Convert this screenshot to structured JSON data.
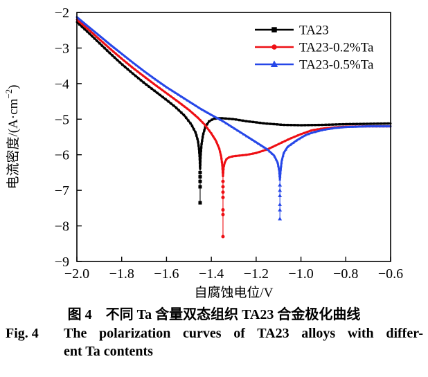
{
  "chart_data": {
    "type": "line",
    "title": "",
    "xlabel": "自腐蚀电位/V",
    "ylabel": {
      "pre": "电流密度/(A·cm",
      "sup": "−2",
      "post": ")"
    },
    "xlim": [
      -2.0,
      -0.6
    ],
    "ylim": [
      -9,
      -2
    ],
    "grid": false,
    "legend_position": "inside-top-right",
    "x_ticks": [
      -2.0,
      -1.8,
      -1.6,
      -1.4,
      -1.2,
      -1.0,
      -0.8,
      -0.6
    ],
    "x_tick_labels": [
      "−2.0",
      "−1.8",
      "−1.6",
      "−1.4",
      "−1.2",
      "−1.0",
      "−0.8",
      "−0.6"
    ],
    "y_ticks": [
      -2,
      -3,
      -4,
      -5,
      -6,
      -7,
      -8,
      -9
    ],
    "y_tick_labels": [
      "−2",
      "−3",
      "−4",
      "−5",
      "−6",
      "−7",
      "−8",
      "−9"
    ],
    "series": [
      {
        "name": "TA23",
        "color": "#000000",
        "marker": "square",
        "corrosion_potential_V": -1.45,
        "points": [
          [
            -2.0,
            -2.27
          ],
          [
            -1.95,
            -2.56
          ],
          [
            -1.9,
            -2.86
          ],
          [
            -1.85,
            -3.16
          ],
          [
            -1.8,
            -3.45
          ],
          [
            -1.75,
            -3.72
          ],
          [
            -1.7,
            -3.98
          ],
          [
            -1.65,
            -4.22
          ],
          [
            -1.6,
            -4.46
          ],
          [
            -1.56,
            -4.66
          ],
          [
            -1.52,
            -4.9
          ],
          [
            -1.49,
            -5.14
          ],
          [
            -1.47,
            -5.38
          ],
          [
            -1.46,
            -5.6
          ],
          [
            -1.455,
            -5.82
          ],
          [
            -1.452,
            -6.08
          ],
          [
            -1.45,
            -6.4
          ],
          [
            -1.448,
            -6.05
          ],
          [
            -1.444,
            -5.72
          ],
          [
            -1.437,
            -5.44
          ],
          [
            -1.427,
            -5.22
          ],
          [
            -1.41,
            -5.06
          ],
          [
            -1.39,
            -4.99
          ],
          [
            -1.36,
            -4.97
          ],
          [
            -1.3,
            -5.0
          ],
          [
            -1.24,
            -5.06
          ],
          [
            -1.16,
            -5.12
          ],
          [
            -1.08,
            -5.16
          ],
          [
            -1.0,
            -5.17
          ],
          [
            -0.9,
            -5.16
          ],
          [
            -0.8,
            -5.14
          ],
          [
            -0.7,
            -5.13
          ],
          [
            -0.6,
            -5.12
          ]
        ],
        "spike": {
          "x": -1.45,
          "top": -6.4,
          "bottom": -7.35,
          "markers": [
            -6.5,
            -6.62,
            -6.75,
            -6.9,
            -7.35
          ]
        }
      },
      {
        "name": "TA23-0.2%Ta",
        "color": "#ee0f14",
        "marker": "circle",
        "corrosion_potential_V": -1.35,
        "points": [
          [
            -2.0,
            -2.2
          ],
          [
            -1.95,
            -2.47
          ],
          [
            -1.9,
            -2.75
          ],
          [
            -1.85,
            -3.03
          ],
          [
            -1.8,
            -3.3
          ],
          [
            -1.75,
            -3.56
          ],
          [
            -1.7,
            -3.8
          ],
          [
            -1.65,
            -4.04
          ],
          [
            -1.6,
            -4.27
          ],
          [
            -1.55,
            -4.5
          ],
          [
            -1.5,
            -4.74
          ],
          [
            -1.46,
            -4.96
          ],
          [
            -1.43,
            -5.15
          ],
          [
            -1.4,
            -5.4
          ],
          [
            -1.38,
            -5.6
          ],
          [
            -1.365,
            -5.82
          ],
          [
            -1.356,
            -6.05
          ],
          [
            -1.351,
            -6.3
          ],
          [
            -1.348,
            -6.6
          ],
          [
            -1.345,
            -6.35
          ],
          [
            -1.34,
            -6.22
          ],
          [
            -1.332,
            -6.12
          ],
          [
            -1.32,
            -6.07
          ],
          [
            -1.3,
            -6.04
          ],
          [
            -1.27,
            -6.02
          ],
          [
            -1.24,
            -6.0
          ],
          [
            -1.2,
            -5.95
          ],
          [
            -1.15,
            -5.85
          ],
          [
            -1.1,
            -5.7
          ],
          [
            -1.05,
            -5.55
          ],
          [
            -1.0,
            -5.42
          ],
          [
            -0.95,
            -5.31
          ],
          [
            -0.9,
            -5.26
          ],
          [
            -0.85,
            -5.23
          ],
          [
            -0.8,
            -5.21
          ],
          [
            -0.7,
            -5.2
          ],
          [
            -0.6,
            -5.2
          ]
        ],
        "spike": {
          "x": -1.348,
          "top": -6.6,
          "bottom": -8.3,
          "markers": [
            -6.75,
            -6.9,
            -7.05,
            -7.2,
            -7.55,
            -7.68,
            -8.3
          ]
        }
      },
      {
        "name": "TA23-0.5%Ta",
        "color": "#2647e8",
        "marker": "triangle",
        "corrosion_potential_V": -1.09,
        "points": [
          [
            -2.0,
            -2.13
          ],
          [
            -1.95,
            -2.39
          ],
          [
            -1.9,
            -2.65
          ],
          [
            -1.85,
            -2.91
          ],
          [
            -1.8,
            -3.16
          ],
          [
            -1.75,
            -3.41
          ],
          [
            -1.7,
            -3.65
          ],
          [
            -1.65,
            -3.88
          ],
          [
            -1.6,
            -4.1
          ],
          [
            -1.55,
            -4.3
          ],
          [
            -1.5,
            -4.5
          ],
          [
            -1.45,
            -4.7
          ],
          [
            -1.4,
            -4.88
          ],
          [
            -1.35,
            -5.05
          ],
          [
            -1.3,
            -5.25
          ],
          [
            -1.25,
            -5.45
          ],
          [
            -1.2,
            -5.65
          ],
          [
            -1.15,
            -5.85
          ],
          [
            -1.12,
            -6.02
          ],
          [
            -1.104,
            -6.22
          ],
          [
            -1.097,
            -6.45
          ],
          [
            -1.094,
            -6.7
          ],
          [
            -1.091,
            -6.45
          ],
          [
            -1.086,
            -6.18
          ],
          [
            -1.077,
            -5.95
          ],
          [
            -1.06,
            -5.78
          ],
          [
            -1.02,
            -5.6
          ],
          [
            -0.98,
            -5.45
          ],
          [
            -0.95,
            -5.38
          ],
          [
            -0.9,
            -5.3
          ],
          [
            -0.85,
            -5.25
          ],
          [
            -0.8,
            -5.22
          ],
          [
            -0.75,
            -5.21
          ],
          [
            -0.7,
            -5.2
          ],
          [
            -0.6,
            -5.2
          ]
        ],
        "spike": {
          "x": -1.094,
          "top": -6.7,
          "bottom": -7.8,
          "markers": [
            -6.85,
            -7.0,
            -7.15,
            -7.4,
            -7.55,
            -7.8
          ]
        }
      }
    ]
  },
  "caption": {
    "zh": "图 4　不同 Ta 含量双态组织 TA23 合金极化曲线",
    "en_label": "Fig. 4",
    "en_line1": "The polarization curves of TA23 alloys with differ-",
    "en_line2": "ent Ta contents"
  }
}
